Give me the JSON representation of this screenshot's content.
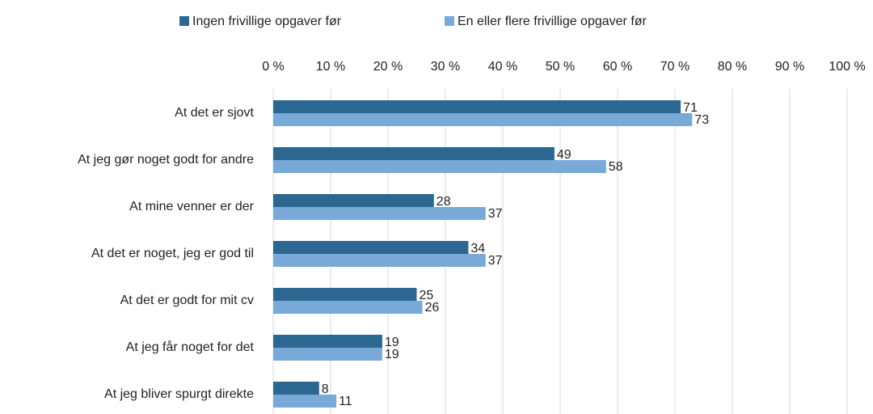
{
  "chart_data": {
    "type": "bar",
    "orientation": "horizontal",
    "categories": [
      "At det er sjovt",
      "At jeg gør noget godt for andre",
      "At mine venner er der",
      "At det er noget, jeg er god til",
      "At det er godt for mit cv",
      "At jeg får noget for det",
      "At jeg bliver spurgt direkte"
    ],
    "series": [
      {
        "name": "Ingen frivillige opgaver før",
        "color": "#2b6791",
        "values": [
          71,
          49,
          28,
          34,
          25,
          19,
          8
        ]
      },
      {
        "name": "En eller flere frivillige opgaver før",
        "color": "#78a9d7",
        "values": [
          73,
          58,
          37,
          37,
          26,
          19,
          11
        ]
      }
    ],
    "xlim": [
      0,
      100
    ],
    "xticks": [
      {
        "value": 0,
        "label": "0 %"
      },
      {
        "value": 10,
        "label": "10 %"
      },
      {
        "value": 20,
        "label": "20 %"
      },
      {
        "value": 30,
        "label": "30 %"
      },
      {
        "value": 40,
        "label": "40 %"
      },
      {
        "value": 50,
        "label": "50 %"
      },
      {
        "value": 60,
        "label": "60 %"
      },
      {
        "value": 70,
        "label": "70 %"
      },
      {
        "value": 80,
        "label": "80 %"
      },
      {
        "value": 90,
        "label": "90 %"
      },
      {
        "value": 100,
        "label": "100 %"
      }
    ],
    "grid": true,
    "legend": "top"
  }
}
